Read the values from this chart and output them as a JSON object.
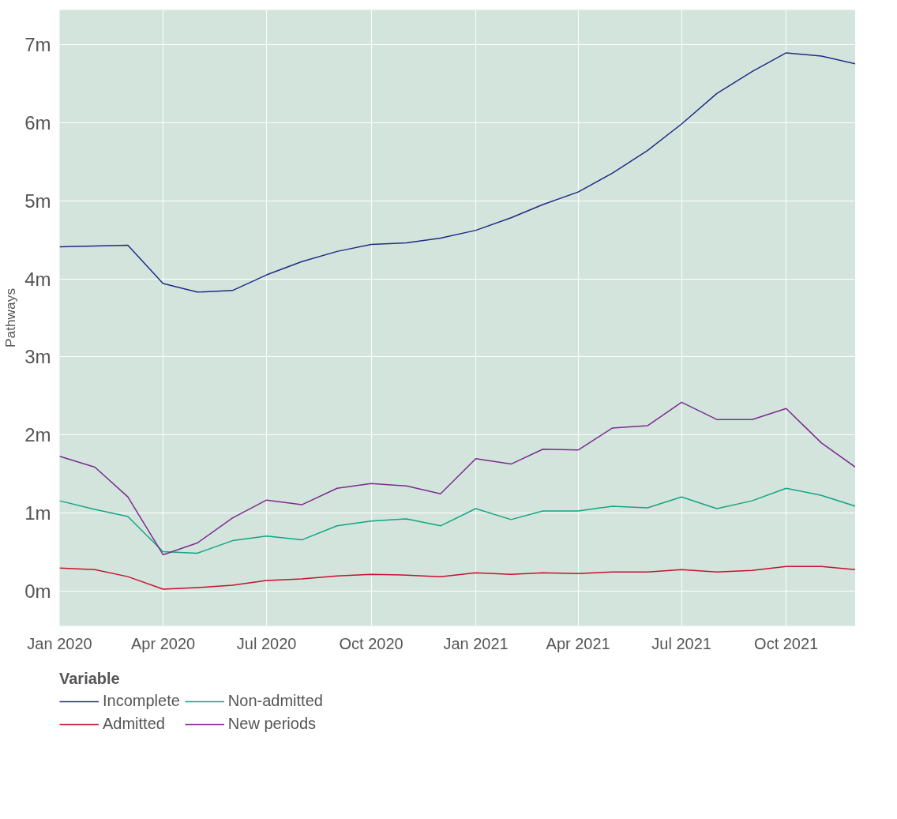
{
  "chart_data": {
    "type": "line",
    "ylabel": "Pathways",
    "legend_title": "Variable",
    "legend": "bottom",
    "grid": true,
    "line_style": "solid",
    "x": [
      "2020-01-15",
      "2020-02-15",
      "2020-03-15",
      "2020-04-15",
      "2020-05-15",
      "2020-06-15",
      "2020-07-15",
      "2020-08-15",
      "2020-09-15",
      "2020-10-15",
      "2020-11-15",
      "2020-12-15",
      "2021-01-15",
      "2021-02-15",
      "2021-03-15",
      "2021-04-15",
      "2021-05-15",
      "2021-06-15",
      "2021-07-15",
      "2021-08-15",
      "2021-09-15",
      "2021-10-15",
      "2021-11-15",
      "2021-12-15"
    ],
    "xlim": [
      "2020-01-15",
      "2021-12-15"
    ],
    "xticks": [
      {
        "value": "2020-01-15",
        "label": "Jan 2020"
      },
      {
        "value": "2020-04-15",
        "label": "Apr 2020"
      },
      {
        "value": "2020-07-15",
        "label": "Jul 2020"
      },
      {
        "value": "2020-10-15",
        "label": "Oct 2020"
      },
      {
        "value": "2021-01-15",
        "label": "Jan 2021"
      },
      {
        "value": "2021-04-15",
        "label": "Apr 2021"
      },
      {
        "value": "2021-07-15",
        "label": "Jul 2021"
      },
      {
        "value": "2021-10-15",
        "label": "Oct 2021"
      }
    ],
    "ylim": [
      -0.44,
      7.44
    ],
    "yticks": [
      {
        "value": 0,
        "label": "0m"
      },
      {
        "value": 1,
        "label": "1m"
      },
      {
        "value": 2,
        "label": "2m"
      },
      {
        "value": 3,
        "label": "3m"
      },
      {
        "value": 4,
        "label": "4m"
      },
      {
        "value": 5,
        "label": "5m"
      },
      {
        "value": 6,
        "label": "6m"
      },
      {
        "value": 7,
        "label": "7m"
      }
    ],
    "series": [
      {
        "name": "Incomplete",
        "color": "#1f2d86",
        "values": [
          4.41,
          4.42,
          4.43,
          3.94,
          3.83,
          3.85,
          4.05,
          4.22,
          4.35,
          4.44,
          4.46,
          4.52,
          4.62,
          4.78,
          4.95,
          5.11,
          5.35,
          5.64,
          5.98,
          6.37,
          6.65,
          6.89,
          6.85,
          6.75
        ]
      },
      {
        "name": "Admitted",
        "color": "#c8102e",
        "values": [
          0.3,
          0.28,
          0.19,
          0.03,
          0.05,
          0.08,
          0.14,
          0.16,
          0.2,
          0.22,
          0.21,
          0.19,
          0.24,
          0.22,
          0.24,
          0.23,
          0.25,
          0.25,
          0.28,
          0.25,
          0.27,
          0.32,
          0.32,
          0.28
        ]
      },
      {
        "name": "Non-admitted",
        "color": "#12a585",
        "values": [
          1.16,
          1.05,
          0.96,
          0.51,
          0.49,
          0.65,
          0.71,
          0.66,
          0.84,
          0.9,
          0.93,
          0.84,
          1.06,
          0.92,
          1.03,
          1.03,
          1.09,
          1.07,
          1.21,
          1.06,
          1.16,
          1.32,
          1.23,
          1.09
        ]
      },
      {
        "name": "New periods",
        "color": "#7b2d8e",
        "values": [
          1.73,
          1.59,
          1.21,
          0.47,
          0.62,
          0.94,
          1.17,
          1.11,
          1.32,
          1.38,
          1.35,
          1.25,
          1.7,
          1.63,
          1.82,
          1.81,
          2.09,
          2.12,
          2.42,
          2.2,
          2.2,
          2.34,
          1.9,
          1.59
        ]
      }
    ]
  }
}
